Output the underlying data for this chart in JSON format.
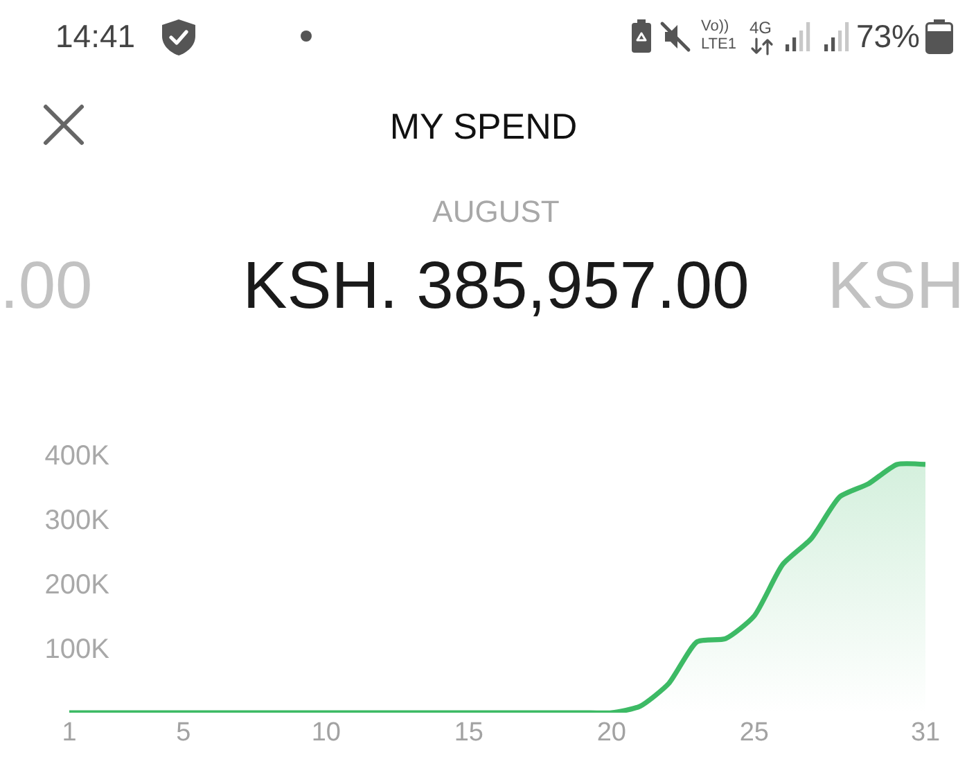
{
  "chart_data": {
    "type": "area",
    "title": "MY SPEND",
    "subtitle": "AUGUST",
    "annotations": [
      "KSH. 385,957.00",
      ".00",
      "KSH",
      "14:41",
      "Vo))",
      "LTE1",
      "4G",
      "73%"
    ],
    "x": [
      1,
      2,
      3,
      4,
      5,
      6,
      7,
      8,
      9,
      10,
      11,
      12,
      13,
      14,
      15,
      16,
      17,
      18,
      19,
      20,
      21,
      22,
      23,
      24,
      25,
      26,
      27,
      28,
      29,
      30,
      31
    ],
    "series": [
      {
        "color": "#3dba65",
        "values": [
          0,
          0,
          0,
          0,
          0,
          0,
          0,
          0,
          0,
          0,
          0,
          0,
          0,
          0,
          0,
          0,
          0,
          0,
          0,
          0,
          10000,
          45000,
          110000,
          115000,
          150000,
          230000,
          270000,
          335000,
          355000,
          385000,
          385000
        ]
      }
    ],
    "xlim": [
      1,
      31
    ],
    "xticks": [
      1,
      5,
      10,
      15,
      20,
      25,
      31
    ],
    "ylim": [
      0,
      400000
    ],
    "yticks": [
      {
        "value": 100000,
        "label": "100K"
      },
      {
        "value": 200000,
        "label": "200K"
      },
      {
        "value": 300000,
        "label": "300K"
      },
      {
        "value": 400000,
        "label": "400K"
      }
    ]
  }
}
